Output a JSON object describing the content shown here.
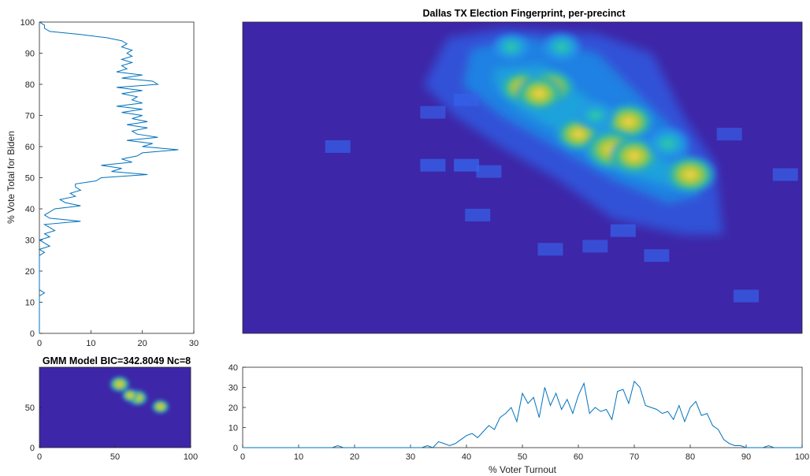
{
  "figure": {
    "main_title": "Dallas TX Election Fingerprint, per-precinct",
    "gmm_title": "GMM Model BIC=342.8049 Nc=8",
    "x_label": "% Voter Turnout",
    "y_label": "% Vote Total for Biden"
  },
  "colors": {
    "line": "#0072bd",
    "heat_background": "#3e26a8",
    "axis": "#262626"
  },
  "chart_data": [
    {
      "id": "biden_hist",
      "type": "line",
      "orientation": "horizontal",
      "xlabel": "",
      "ylabel": "% Vote Total for Biden",
      "xlim": [
        0,
        30
      ],
      "ylim": [
        0,
        100
      ],
      "xticks": [
        0,
        10,
        20,
        30
      ],
      "yticks": [
        0,
        10,
        20,
        30,
        40,
        50,
        60,
        70,
        80,
        90,
        100
      ],
      "y": [
        0,
        1,
        2,
        3,
        4,
        5,
        6,
        7,
        8,
        9,
        10,
        11,
        12,
        13,
        14,
        15,
        16,
        17,
        18,
        19,
        20,
        21,
        22,
        23,
        24,
        25,
        26,
        27,
        28,
        29,
        30,
        31,
        32,
        33,
        34,
        35,
        36,
        37,
        38,
        39,
        40,
        41,
        42,
        43,
        44,
        45,
        46,
        47,
        48,
        49,
        50,
        51,
        52,
        53,
        54,
        55,
        56,
        57,
        58,
        59,
        60,
        61,
        62,
        63,
        64,
        65,
        66,
        67,
        68,
        69,
        70,
        71,
        72,
        73,
        74,
        75,
        76,
        77,
        78,
        79,
        80,
        81,
        82,
        83,
        84,
        85,
        86,
        87,
        88,
        89,
        90,
        91,
        92,
        93,
        94,
        95,
        96,
        97,
        98,
        99,
        100
      ],
      "x": [
        0,
        0,
        0,
        0,
        0,
        0,
        0,
        0,
        0,
        0,
        0,
        0,
        0,
        1,
        0,
        0,
        0,
        0,
        0,
        0,
        0,
        0,
        0,
        0,
        0,
        0,
        1,
        0,
        2,
        1,
        0,
        2,
        1,
        3,
        2,
        1,
        8,
        2,
        1,
        2,
        3,
        8,
        5,
        4,
        7,
        6,
        8,
        7,
        7,
        11,
        12,
        21,
        14,
        16,
        12,
        18,
        16,
        19,
        20,
        27,
        20,
        22,
        17,
        23,
        19,
        18,
        21,
        17,
        21,
        18,
        20,
        16,
        20,
        15,
        20,
        18,
        19,
        16,
        20,
        15,
        23,
        22,
        16,
        20,
        15,
        17,
        16,
        18,
        16,
        18,
        17,
        18,
        16,
        17,
        16,
        13,
        8,
        2,
        1,
        1,
        0
      ]
    },
    {
      "id": "fingerprint",
      "type": "heatmap",
      "title": "Dallas TX Election Fingerprint, per-precinct",
      "xlim": [
        0,
        100
      ],
      "ylim": [
        0,
        100
      ],
      "colormap": "parula",
      "notes": "2D histogram of precinct counts; turnout on x, Biden vote share on y",
      "hotspots": [
        {
          "x": 50,
          "y": 79,
          "peak": 0.72
        },
        {
          "x": 55,
          "y": 79,
          "peak": 0.8
        },
        {
          "x": 53,
          "y": 77,
          "peak": 0.78
        },
        {
          "x": 60,
          "y": 64,
          "peak": 0.7
        },
        {
          "x": 69,
          "y": 68,
          "peak": 0.82
        },
        {
          "x": 66,
          "y": 59,
          "peak": 0.95
        },
        {
          "x": 70,
          "y": 57,
          "peak": 0.82
        },
        {
          "x": 80,
          "y": 51,
          "peak": 0.85
        },
        {
          "x": 57,
          "y": 92,
          "peak": 0.55
        },
        {
          "x": 48,
          "y": 92,
          "peak": 0.5
        },
        {
          "x": 76,
          "y": 61,
          "peak": 0.65
        },
        {
          "x": 63,
          "y": 70,
          "peak": 0.58
        }
      ],
      "outliers": [
        {
          "x": 17,
          "y": 60,
          "peak": 0.2
        },
        {
          "x": 34,
          "y": 54,
          "peak": 0.25
        },
        {
          "x": 40,
          "y": 54,
          "peak": 0.3
        },
        {
          "x": 44,
          "y": 52,
          "peak": 0.2
        },
        {
          "x": 42,
          "y": 38,
          "peak": 0.2
        },
        {
          "x": 68,
          "y": 33,
          "peak": 0.22
        },
        {
          "x": 63,
          "y": 28,
          "peak": 0.15
        },
        {
          "x": 55,
          "y": 27,
          "peak": 0.18
        },
        {
          "x": 74,
          "y": 25,
          "peak": 0.2
        },
        {
          "x": 90,
          "y": 12,
          "peak": 0.2
        },
        {
          "x": 97,
          "y": 51,
          "peak": 0.2
        },
        {
          "x": 87,
          "y": 64,
          "peak": 0.15
        },
        {
          "x": 34,
          "y": 71,
          "peak": 0.15
        },
        {
          "x": 40,
          "y": 75,
          "peak": 0.2
        }
      ]
    },
    {
      "id": "gmm_model",
      "type": "heatmap",
      "title": "GMM Model BIC=342.8049 Nc=8",
      "xlim": [
        0,
        100
      ],
      "ylim": [
        0,
        100
      ],
      "xticks": [
        0,
        50,
        100
      ],
      "yticks": [
        0,
        50
      ],
      "components": [
        {
          "x": 53,
          "y": 79,
          "peak": 1.0
        },
        {
          "x": 65,
          "y": 62,
          "peak": 0.95
        },
        {
          "x": 60,
          "y": 65,
          "peak": 0.6
        },
        {
          "x": 80,
          "y": 51,
          "peak": 0.7
        }
      ]
    },
    {
      "id": "turnout_hist",
      "type": "line",
      "xlabel": "% Voter Turnout",
      "ylabel": "",
      "xlim": [
        0,
        100
      ],
      "ylim": [
        0,
        40
      ],
      "xticks": [
        0,
        10,
        20,
        30,
        40,
        50,
        60,
        70,
        80,
        90,
        100
      ],
      "yticks": [
        0,
        10,
        20,
        30,
        40
      ],
      "x": [
        0,
        1,
        2,
        3,
        4,
        5,
        6,
        7,
        8,
        9,
        10,
        11,
        12,
        13,
        14,
        15,
        16,
        17,
        18,
        19,
        20,
        21,
        22,
        23,
        24,
        25,
        26,
        27,
        28,
        29,
        30,
        31,
        32,
        33,
        34,
        35,
        36,
        37,
        38,
        39,
        40,
        41,
        42,
        43,
        44,
        45,
        46,
        47,
        48,
        49,
        50,
        51,
        52,
        53,
        54,
        55,
        56,
        57,
        58,
        59,
        60,
        61,
        62,
        63,
        64,
        65,
        66,
        67,
        68,
        69,
        70,
        71,
        72,
        73,
        74,
        75,
        76,
        77,
        78,
        79,
        80,
        81,
        82,
        83,
        84,
        85,
        86,
        87,
        88,
        89,
        90,
        91,
        92,
        93,
        94,
        95,
        96,
        97,
        98,
        99,
        100
      ],
      "y": [
        0,
        0,
        0,
        0,
        0,
        0,
        0,
        0,
        0,
        0,
        0,
        0,
        0,
        0,
        0,
        0,
        0,
        1,
        0,
        0,
        0,
        0,
        0,
        0,
        0,
        0,
        0,
        0,
        0,
        0,
        0,
        0,
        0,
        1,
        0,
        3,
        2,
        1,
        2,
        4,
        6,
        7,
        5,
        8,
        11,
        9,
        15,
        17,
        20,
        13,
        27,
        22,
        25,
        15,
        30,
        21,
        27,
        19,
        24,
        17,
        26,
        32,
        17,
        20,
        18,
        19,
        14,
        28,
        29,
        22,
        33,
        30,
        21,
        20,
        19,
        17,
        18,
        14,
        21,
        13,
        20,
        23,
        16,
        17,
        11,
        9,
        4,
        2,
        1,
        1,
        0,
        0,
        0,
        0,
        1,
        0,
        0,
        0,
        0,
        0,
        0
      ]
    }
  ]
}
